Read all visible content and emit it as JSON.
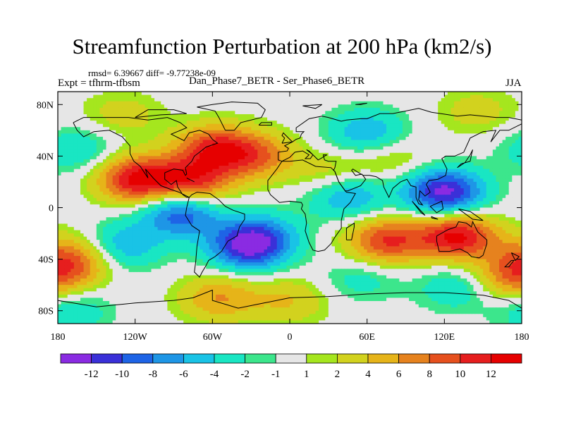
{
  "chart_data": {
    "type": "heatmap",
    "title": "Streamfunction Perturbation at 200 hPa (km2/s)",
    "stats": "rmsd= 6.39667 diff= -9.77238e-09",
    "experiment": "Expt = tfhrm-tfbsm",
    "subtitle": "Dan_Phase7_BETR - Ser_Phase6_BETR",
    "season": "JJA",
    "projection": "cylindrical equidistant, global",
    "continents_overlay": true,
    "xlim": [
      -180,
      180
    ],
    "ylim": [
      -90,
      90
    ],
    "x_ticks": [
      {
        "value": -180,
        "label": "180"
      },
      {
        "value": -120,
        "label": "120W"
      },
      {
        "value": -60,
        "label": "60W"
      },
      {
        "value": 0,
        "label": "0"
      },
      {
        "value": 60,
        "label": "60E"
      },
      {
        "value": 120,
        "label": "120E"
      },
      {
        "value": 180,
        "label": "180"
      }
    ],
    "y_ticks": [
      {
        "value": 80,
        "label": "80N"
      },
      {
        "value": 40,
        "label": "40N"
      },
      {
        "value": 0,
        "label": "0"
      },
      {
        "value": -40,
        "label": "40S"
      },
      {
        "value": -80,
        "label": "80S"
      }
    ],
    "colorbar": {
      "orientation": "horizontal",
      "position": "bottom",
      "levels": [
        -12,
        -10,
        -8,
        -6,
        -4,
        -2,
        -1,
        1,
        2,
        4,
        6,
        8,
        10,
        12
      ],
      "colors": [
        "#8a2be2",
        "#3a30d8",
        "#1e64e6",
        "#1e96e6",
        "#19c3e6",
        "#19e6c3",
        "#3ce68c",
        "#e6e6e6",
        "#a5e61e",
        "#d2d21e",
        "#e6b419",
        "#e6821e",
        "#e6501e",
        "#e61e1e",
        "#e60000"
      ],
      "labels": [
        "-12",
        "-10",
        "-8",
        "-6",
        "-4",
        "-2",
        "-1",
        "1",
        "2",
        "4",
        "6",
        "8",
        "10",
        "12"
      ]
    },
    "field_features": [
      {
        "label": "max",
        "lon": -118,
        "lat": 22,
        "value": 12.5
      },
      {
        "label": "max",
        "lon": -58,
        "lat": 46,
        "value": 10
      },
      {
        "label": "max",
        "lon": -75,
        "lat": 20,
        "value": 10
      },
      {
        "label": "max",
        "lon": -25,
        "lat": 40,
        "value": 7
      },
      {
        "label": "max",
        "lon": 35,
        "lat": 25,
        "value": 4
      },
      {
        "label": "max",
        "lon": 80,
        "lat": 38,
        "value": 3
      },
      {
        "label": "max",
        "lon": 130,
        "lat": -22,
        "value": 12.5
      },
      {
        "label": "max",
        "lon": 75,
        "lat": -26,
        "value": 10
      },
      {
        "label": "max",
        "lon": -168,
        "lat": -40,
        "value": 8
      },
      {
        "label": "max",
        "lon": 172,
        "lat": -55,
        "value": 7
      },
      {
        "label": "max",
        "lon": -55,
        "lat": -70,
        "value": 6
      },
      {
        "label": "max",
        "lon": 0,
        "lat": -72,
        "value": 4
      },
      {
        "label": "max",
        "lon": 145,
        "lat": 75,
        "value": 3
      },
      {
        "label": "max",
        "lon": -130,
        "lat": 72,
        "value": 3
      },
      {
        "label": "min",
        "lon": 120,
        "lat": 12,
        "value": -13
      },
      {
        "label": "min",
        "lon": 45,
        "lat": 10,
        "value": -7
      },
      {
        "label": "min",
        "lon": 60,
        "lat": 58,
        "value": -6
      },
      {
        "label": "min",
        "lon": -85,
        "lat": -4,
        "value": -10
      },
      {
        "label": "min",
        "lon": -32,
        "lat": -30,
        "value": -12
      },
      {
        "label": "min",
        "lon": -165,
        "lat": 45,
        "value": -4
      },
      {
        "label": "min",
        "lon": -130,
        "lat": -30,
        "value": -6
      },
      {
        "label": "min",
        "lon": -170,
        "lat": -80,
        "value": -4
      },
      {
        "label": "min",
        "lon": 55,
        "lat": -55,
        "value": -3
      },
      {
        "label": "min",
        "lon": 130,
        "lat": -62,
        "value": -4
      },
      {
        "label": "min",
        "lon": -20,
        "lat": -20,
        "value": -4
      }
    ]
  }
}
